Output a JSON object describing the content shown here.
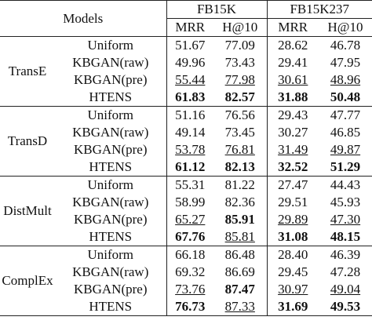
{
  "header": {
    "models": "Models",
    "datasets": [
      "FB15K",
      "FB15K237"
    ],
    "metrics": [
      "MRR",
      "H@10",
      "MRR",
      "H@10"
    ]
  },
  "groups": [
    {
      "model": "TransE",
      "rows": [
        {
          "method": "Uniform",
          "values": [
            "51.67",
            "77.09",
            "28.62",
            "46.78"
          ]
        },
        {
          "method": "KBGAN(raw)",
          "values": [
            "49.96",
            "73.43",
            "29.41",
            "47.95"
          ]
        },
        {
          "method": "KBGAN(pre)",
          "values": [
            "55.44",
            "77.98",
            "30.61",
            "48.96"
          ],
          "underline": [
            0,
            1,
            2,
            3
          ]
        },
        {
          "method": "HTENS",
          "values": [
            "61.83",
            "82.57",
            "31.88",
            "50.48"
          ],
          "bold": [
            0,
            1,
            2,
            3
          ]
        }
      ]
    },
    {
      "model": "TransD",
      "rows": [
        {
          "method": "Uniform",
          "values": [
            "51.16",
            "76.56",
            "29.43",
            "47.77"
          ]
        },
        {
          "method": "KBGAN(raw)",
          "values": [
            "49.14",
            "73.45",
            "30.27",
            "46.85"
          ]
        },
        {
          "method": "KBGAN(pre)",
          "values": [
            "53.78",
            "76.81",
            "31.49",
            "49.87"
          ],
          "underline": [
            0,
            1,
            2,
            3
          ]
        },
        {
          "method": "HTENS",
          "values": [
            "61.12",
            "82.13",
            "32.52",
            "51.29"
          ],
          "bold": [
            0,
            1,
            2,
            3
          ]
        }
      ]
    },
    {
      "model": "DistMult",
      "rows": [
        {
          "method": "Uniform",
          "values": [
            "55.31",
            "81.22",
            "27.47",
            "44.43"
          ]
        },
        {
          "method": "KBGAN(raw)",
          "values": [
            "58.99",
            "82.36",
            "29.51",
            "45.93"
          ]
        },
        {
          "method": "KBGAN(pre)",
          "values": [
            "65.27",
            "85.91",
            "29.89",
            "47.30"
          ],
          "underline": [
            0,
            2,
            3
          ],
          "bold": [
            1
          ]
        },
        {
          "method": "HTENS",
          "values": [
            "67.76",
            "85.81",
            "31.08",
            "48.15"
          ],
          "bold": [
            0,
            2,
            3
          ],
          "underline": [
            1
          ]
        }
      ]
    },
    {
      "model": "ComplEx",
      "rows": [
        {
          "method": "Uniform",
          "values": [
            "66.18",
            "86.48",
            "28.40",
            "46.39"
          ]
        },
        {
          "method": "KBGAN(raw)",
          "values": [
            "69.32",
            "86.69",
            "29.45",
            "47.28"
          ]
        },
        {
          "method": "KBGAN(pre)",
          "values": [
            "73.76",
            "87.47",
            "30.97",
            "49.04"
          ],
          "underline": [
            0,
            2,
            3
          ],
          "bold": [
            1
          ]
        },
        {
          "method": "HTENS",
          "values": [
            "76.73",
            "87.33",
            "31.69",
            "49.53"
          ],
          "bold": [
            0,
            2,
            3
          ],
          "underline": [
            1
          ]
        }
      ]
    }
  ]
}
